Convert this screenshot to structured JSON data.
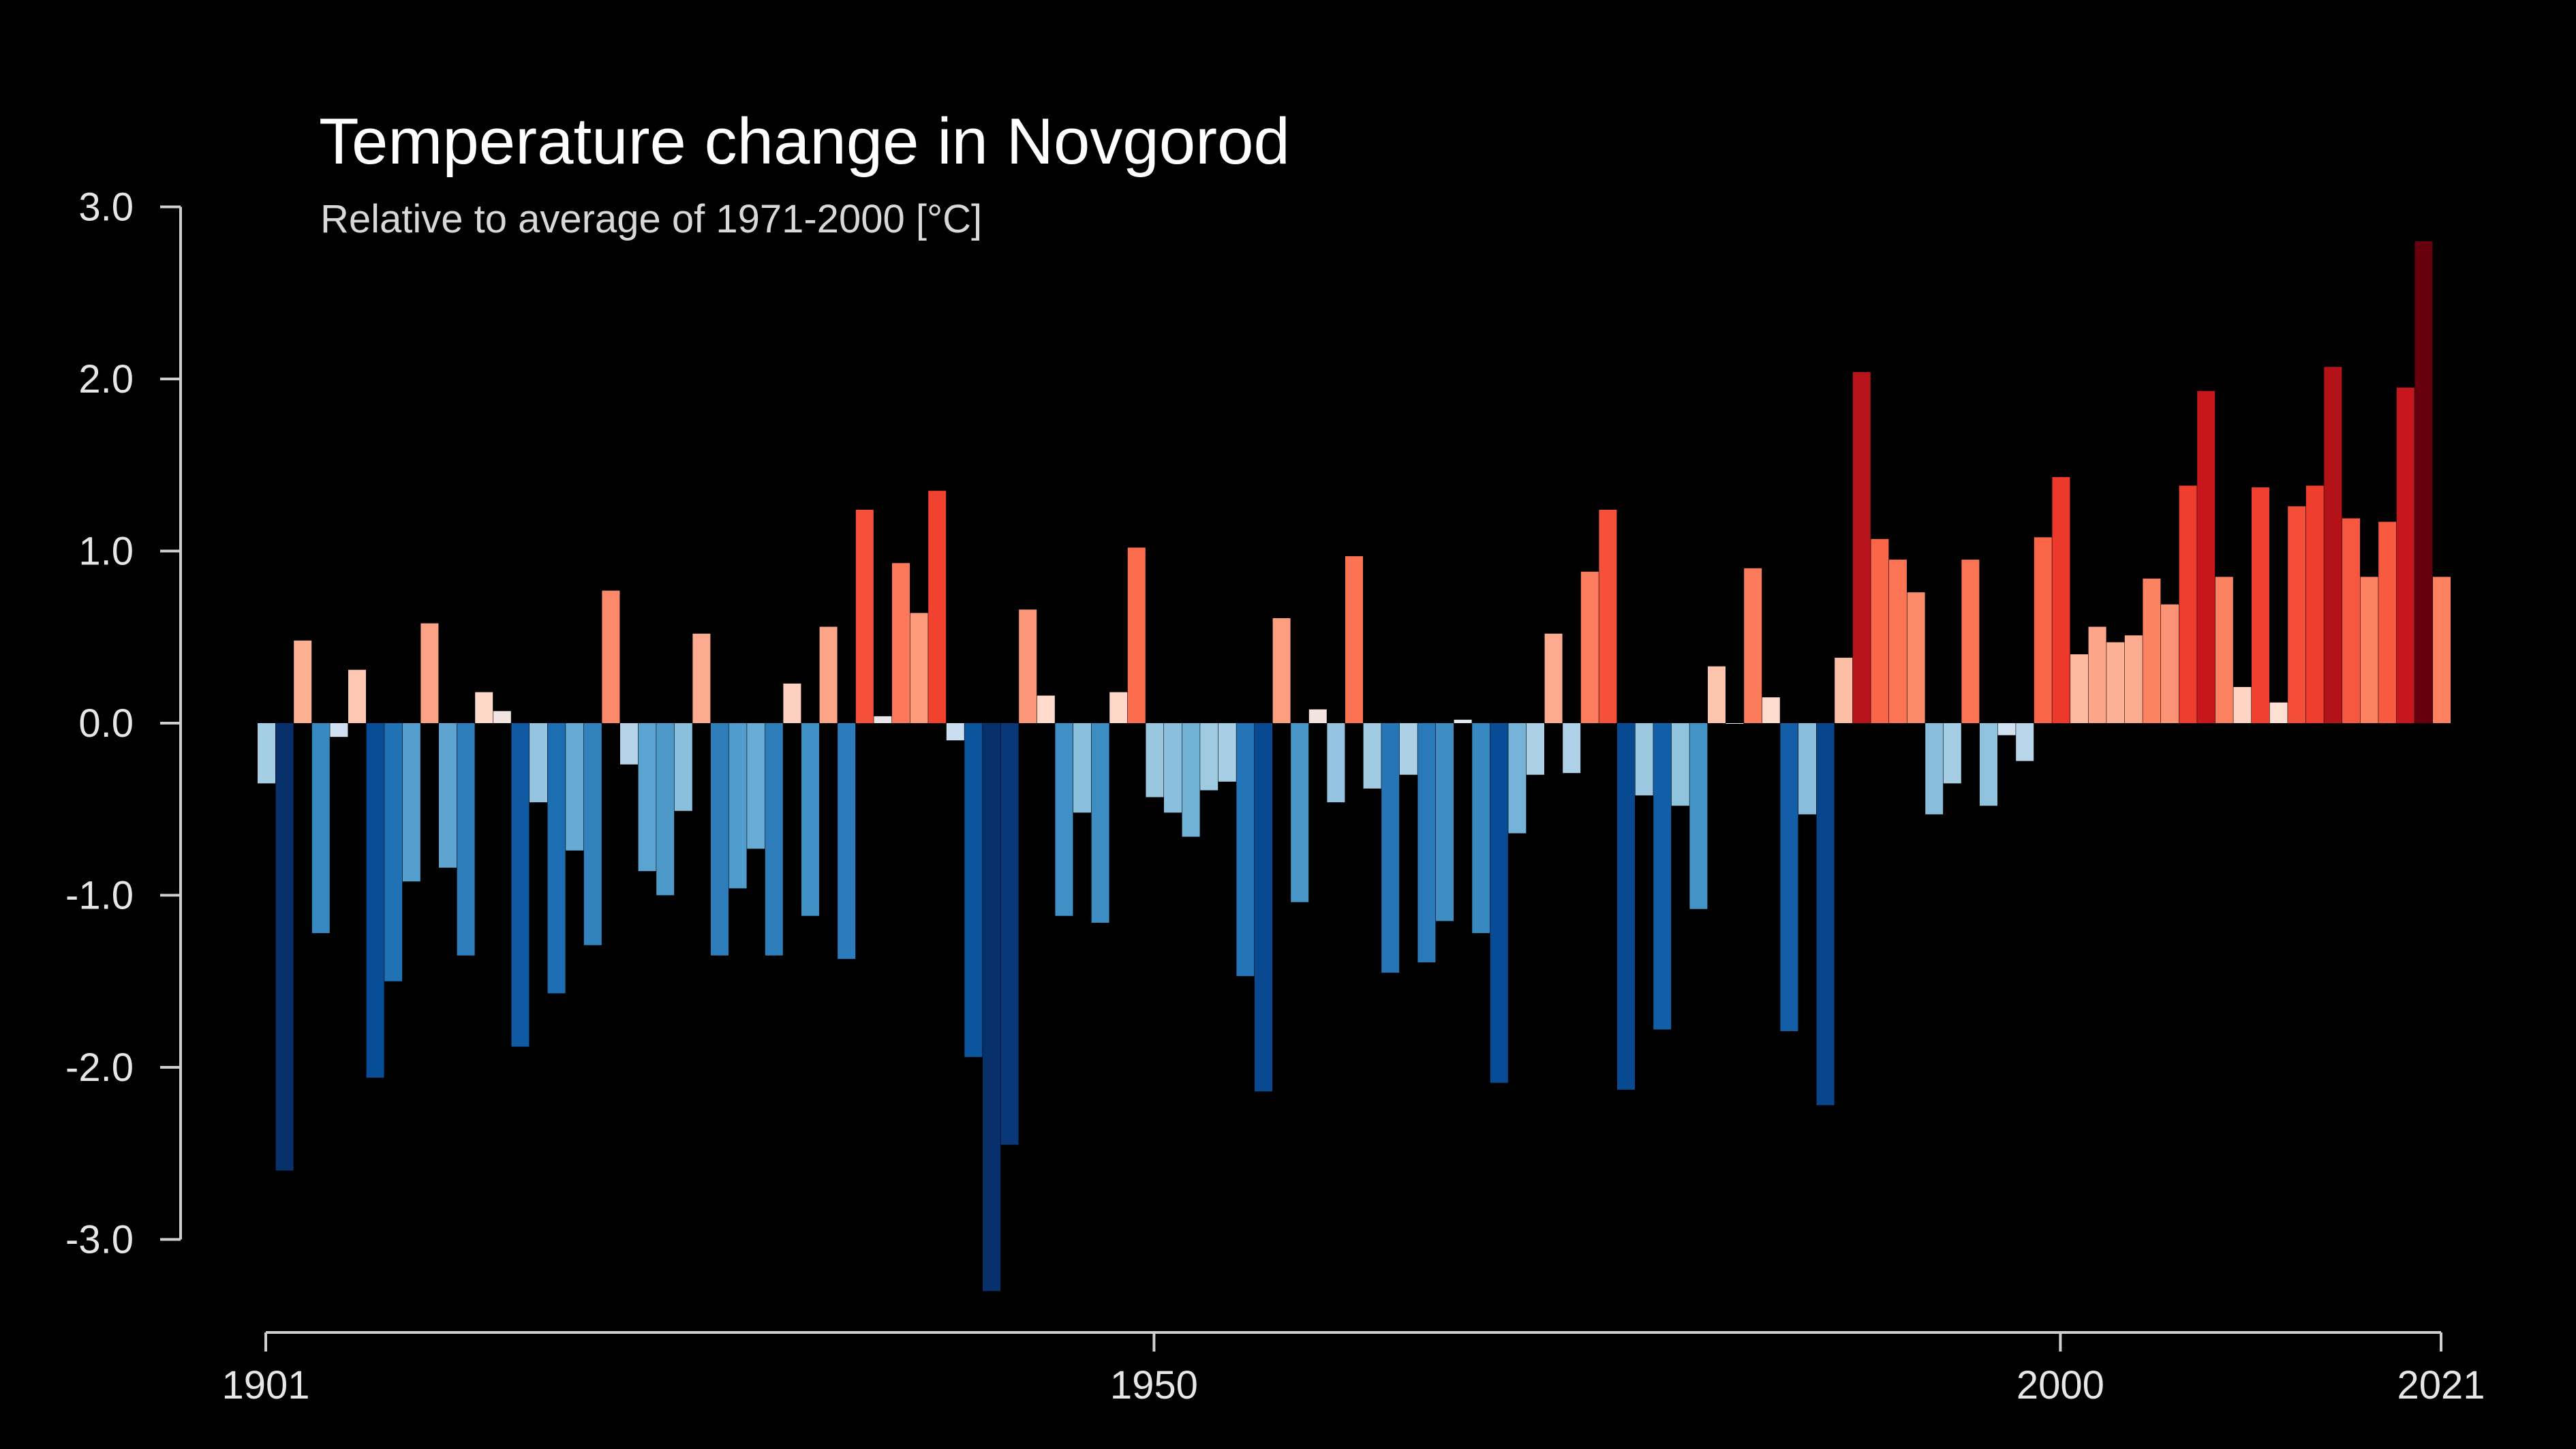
{
  "chart_data": {
    "type": "bar",
    "title": "Temperature change in Novgorod",
    "subtitle": "Relative to average of 1971-2000  [°C]",
    "xlabel": "",
    "ylabel": "",
    "ylim": [
      -3.3,
      3.0
    ],
    "yticks": [
      3.0,
      2.0,
      1.0,
      0.0,
      -1.0,
      -2.0,
      -3.0
    ],
    "ytick_labels": [
      "3.0",
      "2.0",
      "1.0",
      "0.0",
      "-1.0",
      "-2.0",
      "-3.0"
    ],
    "xticks": [
      1901,
      1950,
      2000,
      2021
    ],
    "xtick_labels": [
      "1901",
      "1950",
      "2000",
      "2021"
    ],
    "grid": false,
    "color_scale": "blue-to-red diverging by anomaly",
    "x": [
      1901,
      1902,
      1903,
      1904,
      1905,
      1906,
      1907,
      1908,
      1909,
      1910,
      1911,
      1912,
      1913,
      1914,
      1915,
      1916,
      1917,
      1918,
      1919,
      1920,
      1921,
      1922,
      1923,
      1924,
      1925,
      1926,
      1927,
      1928,
      1929,
      1930,
      1931,
      1932,
      1933,
      1934,
      1935,
      1936,
      1937,
      1938,
      1939,
      1940,
      1941,
      1942,
      1943,
      1944,
      1945,
      1946,
      1947,
      1948,
      1949,
      1950,
      1951,
      1952,
      1953,
      1954,
      1955,
      1956,
      1957,
      1958,
      1959,
      1960,
      1961,
      1962,
      1963,
      1964,
      1965,
      1966,
      1967,
      1968,
      1969,
      1970,
      1971,
      1972,
      1973,
      1974,
      1975,
      1976,
      1977,
      1978,
      1979,
      1980,
      1981,
      1982,
      1983,
      1984,
      1985,
      1986,
      1987,
      1988,
      1989,
      1990,
      1991,
      1992,
      1993,
      1994,
      1995,
      1996,
      1997,
      1998,
      1999,
      2000,
      2001,
      2002,
      2003,
      2004,
      2005,
      2006,
      2007,
      2008,
      2009,
      2010,
      2011,
      2012,
      2013,
      2014,
      2015,
      2016,
      2017,
      2018,
      2019,
      2020,
      2021
    ],
    "values": [
      -0.35,
      -2.6,
      0.48,
      -1.22,
      -0.08,
      0.31,
      -2.06,
      -1.5,
      -0.92,
      0.58,
      -0.84,
      -1.35,
      0.18,
      0.07,
      -1.88,
      -0.46,
      -1.57,
      -0.74,
      -1.29,
      0.77,
      -0.24,
      -0.86,
      -1.0,
      -0.51,
      0.52,
      -1.35,
      -0.96,
      -0.73,
      -1.35,
      0.23,
      -1.12,
      0.56,
      -1.37,
      1.24,
      0.04,
      0.93,
      0.64,
      1.35,
      -0.1,
      -1.94,
      -3.3,
      -2.45,
      0.66,
      0.16,
      -1.12,
      -0.52,
      -1.16,
      0.18,
      1.02,
      -0.43,
      -0.52,
      -0.66,
      -0.39,
      -0.34,
      -1.47,
      -2.14,
      0.61,
      -1.04,
      0.08,
      -0.46,
      0.97,
      -0.38,
      -1.45,
      -0.3,
      -1.39,
      -1.15,
      0.02,
      -1.22,
      -2.09,
      -0.64,
      -0.3,
      0.52,
      -0.29,
      0.88,
      1.24,
      -2.13,
      -0.42,
      -1.78,
      -0.48,
      -1.08,
      0.33,
      0.0,
      0.9,
      0.15,
      -1.79,
      -0.53,
      -2.22,
      0.38,
      2.04,
      1.07,
      0.95,
      0.76,
      -0.53,
      -0.35,
      0.95,
      -0.48,
      -0.07,
      -0.22,
      1.08,
      1.43,
      0.4,
      0.56,
      0.47,
      0.51,
      0.84,
      0.69,
      1.38,
      1.93,
      0.85,
      0.21,
      1.37,
      0.12,
      1.26,
      1.38,
      2.07,
      1.19,
      0.85,
      1.17,
      1.95,
      2.8,
      0.85
    ]
  }
}
